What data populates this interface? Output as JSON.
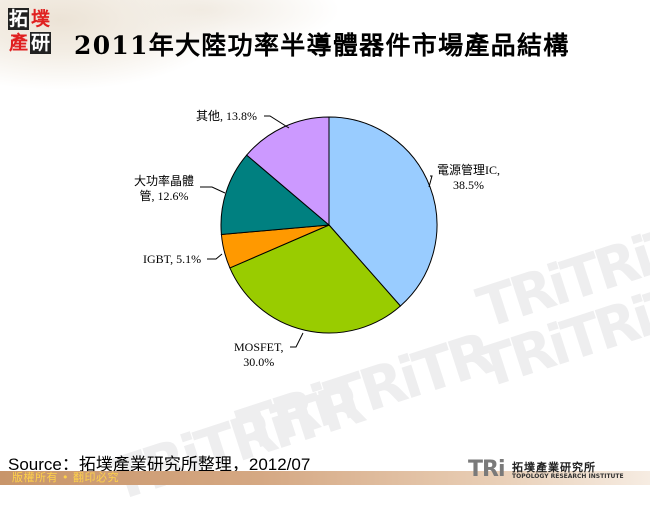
{
  "header": {
    "logo_chars": [
      "拓",
      "墣",
      "產",
      "研"
    ],
    "title": "2011年大陸功率半導體器件市場產品結構"
  },
  "chart_data": {
    "type": "pie",
    "title": "2011年大陸功率半導體器件市場產品結構",
    "start_angle_deg": 0,
    "direction": "clockwise",
    "center": [
      329,
      225
    ],
    "radius": 108,
    "slices": [
      {
        "name": "電源管理IC",
        "value": 38.5,
        "color": "#99ccff"
      },
      {
        "name": "MOSFET",
        "value": 30.0,
        "color": "#99cc00"
      },
      {
        "name": "IGBT",
        "value": 5.1,
        "color": "#ff9900"
      },
      {
        "name": "大功率晶體管",
        "value": 12.6,
        "color": "#008080"
      },
      {
        "name": "其他",
        "value": 13.8,
        "color": "#cc99ff"
      }
    ],
    "labels": [
      {
        "line1": "電源管理IC,",
        "line2": "38.5%"
      },
      {
        "line1": "MOSFET,",
        "line2": "30.0%"
      },
      {
        "line1": "IGBT, 5.1%",
        "line2": ""
      },
      {
        "line1": "大功率晶體",
        "line2": "管, 12.6%"
      },
      {
        "line1": "其他, 13.8%",
        "line2": ""
      }
    ],
    "legend": "none"
  },
  "footer": {
    "source": "Source：拓墣產業研究所整理，2012/07",
    "copyright": "版權所有 • 翻印必究",
    "brand_tri": "TRi",
    "brand_cn": "拓墣產業研究所",
    "brand_en": "TOPOLOGY RESEARCH INSTITUTE"
  },
  "watermark": {
    "text": "TRiTRiTR"
  }
}
